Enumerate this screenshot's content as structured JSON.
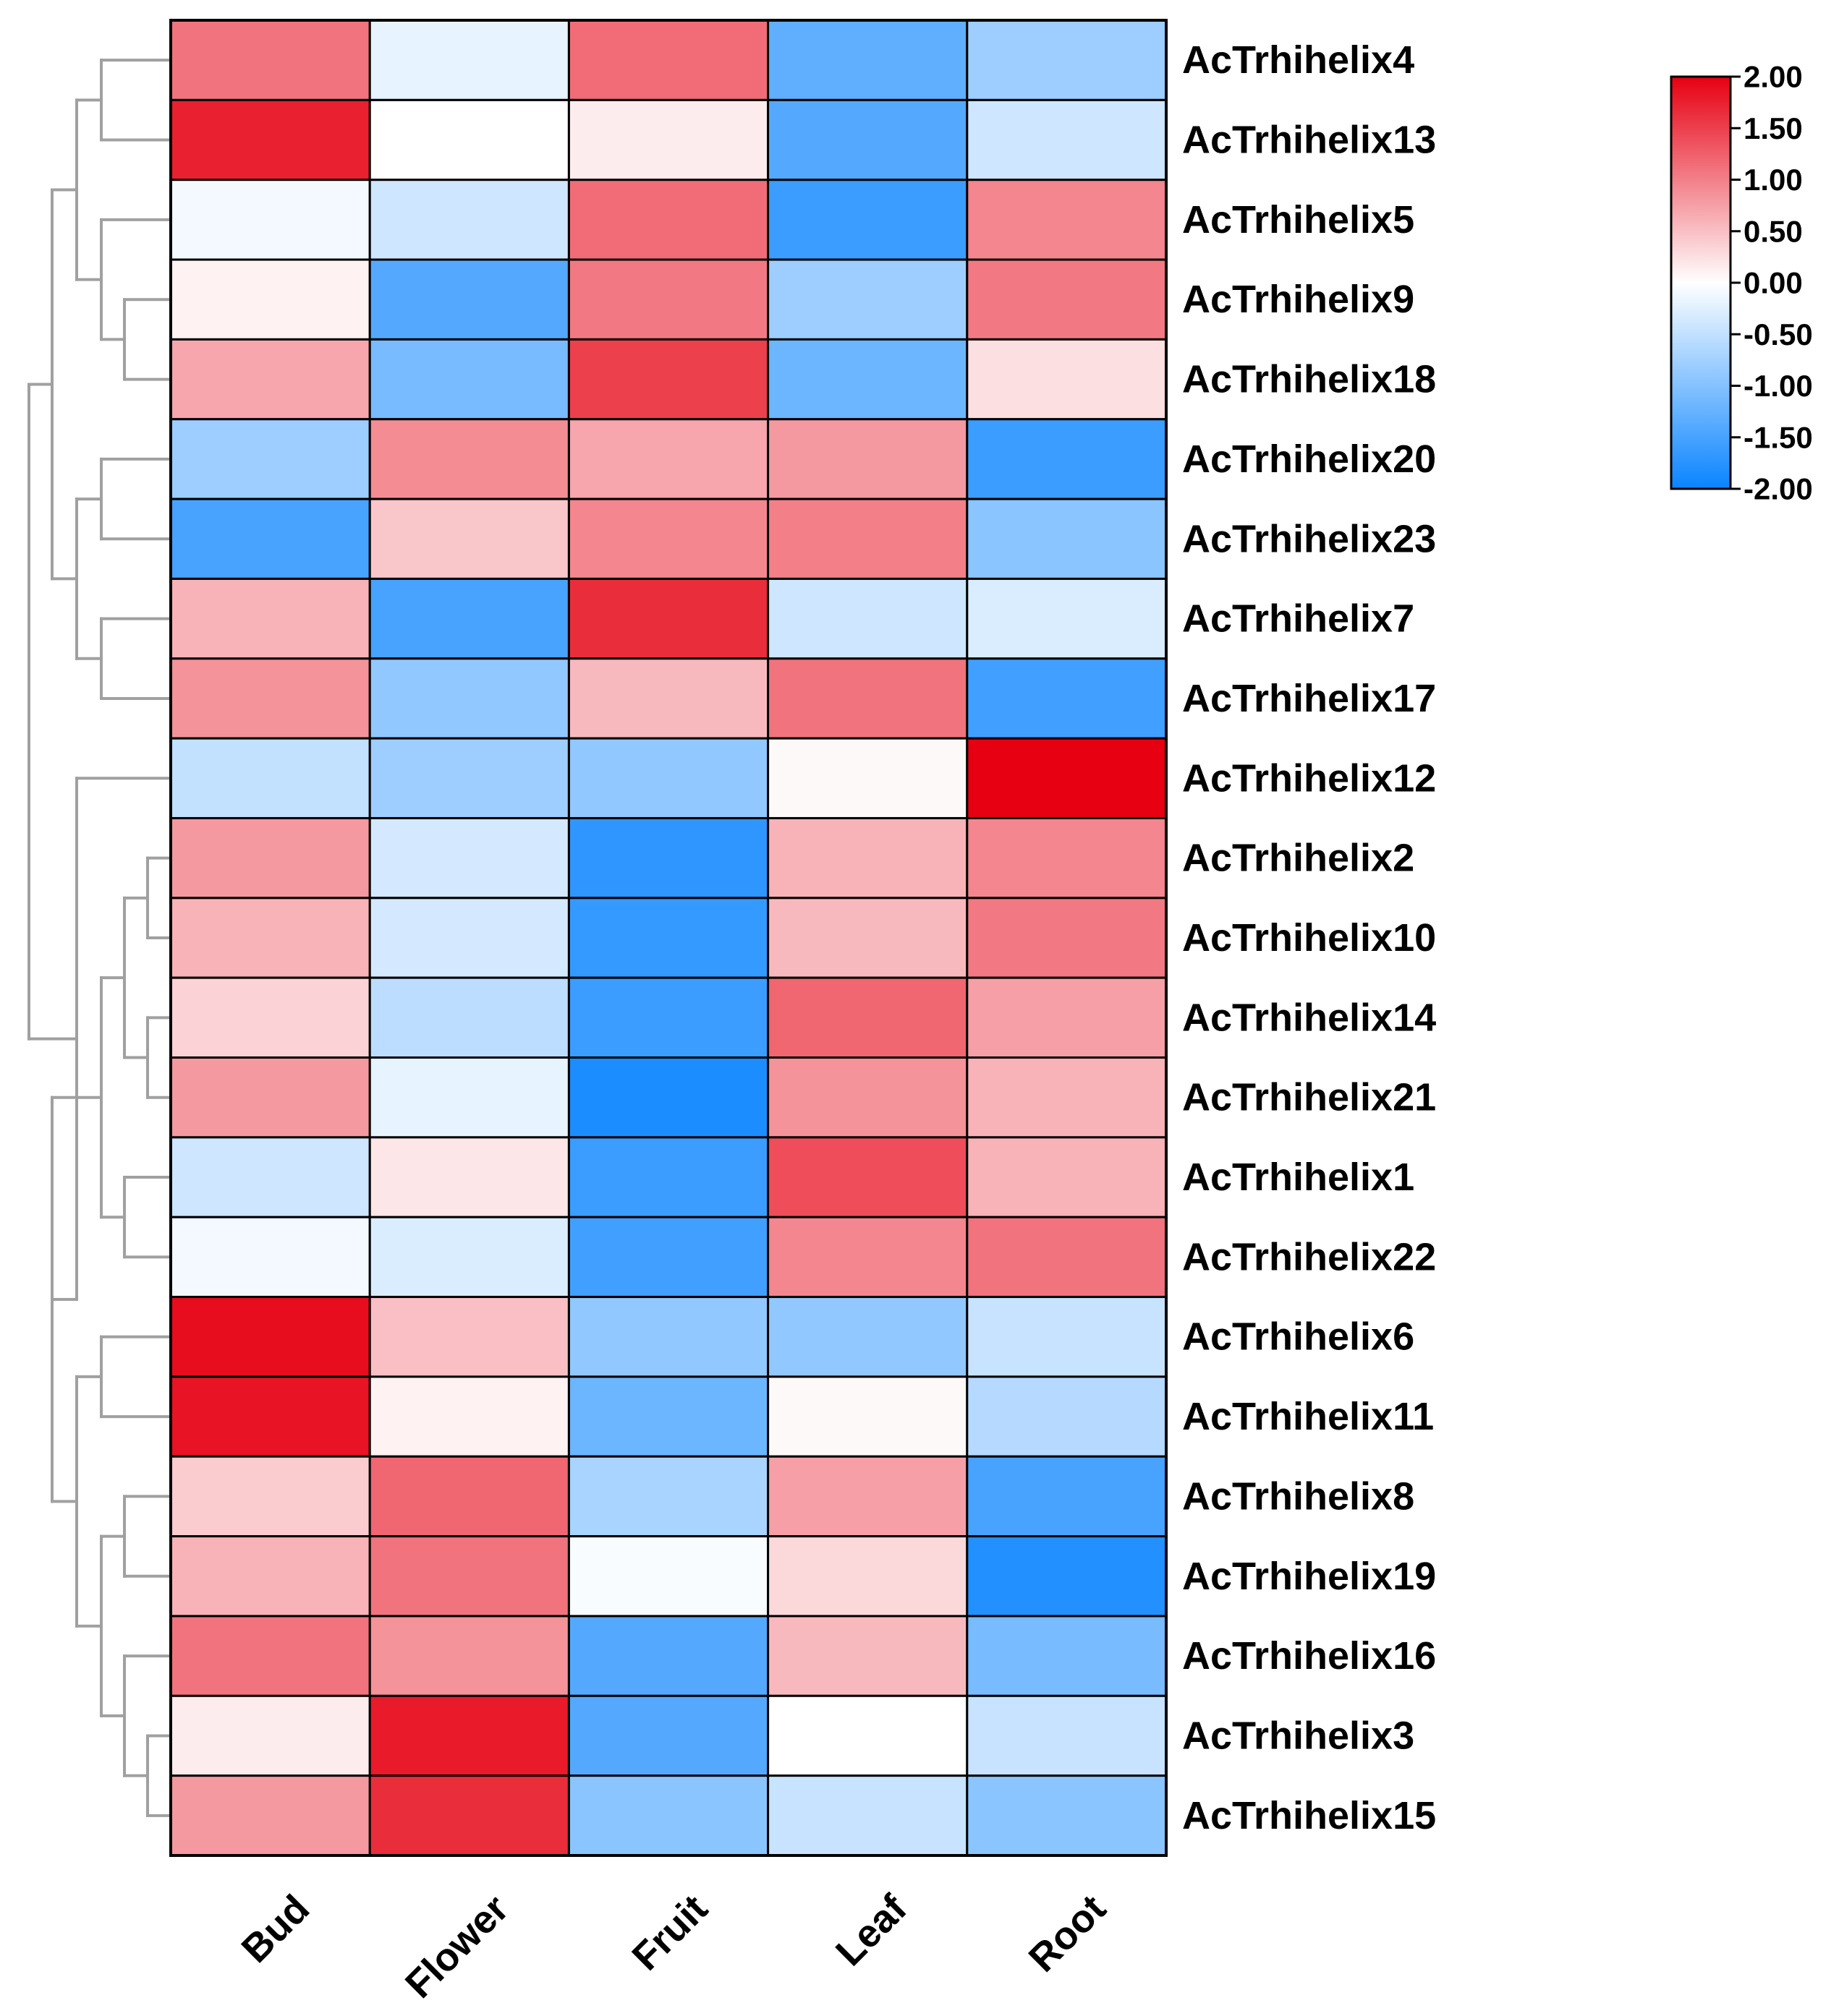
{
  "chart_data": {
    "type": "heatmap",
    "title": "",
    "xlabel": "",
    "ylabel": "",
    "columns": [
      "Bud",
      "Flower",
      "Fruit",
      "Leaf",
      "Root"
    ],
    "rows": [
      "AcTrhihelix4",
      "AcTrhihelix13",
      "AcTrhihelix5",
      "AcTrhihelix9",
      "AcTrhihelix18",
      "AcTrhihelix20",
      "AcTrhihelix23",
      "AcTrhihelix7",
      "AcTrhihelix17",
      "AcTrhihelix12",
      "AcTrhihelix2",
      "AcTrhihelix10",
      "AcTrhihelix14",
      "AcTrhihelix21",
      "AcTrhihelix1",
      "AcTrhihelix22",
      "AcTrhihelix6",
      "AcTrhihelix11",
      "AcTrhihelix8",
      "AcTrhihelix19",
      "AcTrhihelix16",
      "AcTrhihelix3",
      "AcTrhihelix15"
    ],
    "values": [
      [
        1.1,
        -0.2,
        1.15,
        -1.3,
        -0.8
      ],
      [
        1.75,
        0.0,
        0.15,
        -1.4,
        -0.4
      ],
      [
        -0.1,
        -0.4,
        1.15,
        -1.6,
        0.95
      ],
      [
        0.1,
        -1.4,
        1.05,
        -0.8,
        1.05
      ],
      [
        0.7,
        -1.1,
        1.5,
        -1.2,
        0.25
      ],
      [
        -0.8,
        0.9,
        0.7,
        0.8,
        -1.6
      ],
      [
        -1.5,
        0.45,
        0.95,
        1.0,
        -0.95
      ],
      [
        0.6,
        -1.5,
        1.65,
        -0.4,
        -0.3
      ],
      [
        0.85,
        -0.9,
        0.55,
        1.1,
        -1.55
      ],
      [
        -0.5,
        -0.8,
        -0.9,
        0.05,
        2.0
      ],
      [
        0.8,
        -0.35,
        -1.7,
        0.6,
        0.95
      ],
      [
        0.6,
        -0.35,
        -1.65,
        0.55,
        1.05
      ],
      [
        0.35,
        -0.55,
        -1.6,
        1.2,
        0.75
      ],
      [
        0.8,
        -0.2,
        -1.85,
        0.85,
        0.6
      ],
      [
        -0.4,
        0.2,
        -1.6,
        1.4,
        0.6
      ],
      [
        -0.1,
        -0.3,
        -1.55,
        0.95,
        1.1
      ],
      [
        1.9,
        0.5,
        -0.9,
        -0.9,
        -0.45
      ],
      [
        1.85,
        0.1,
        -1.2,
        0.05,
        -0.6
      ],
      [
        0.4,
        1.2,
        -0.7,
        0.75,
        -1.5
      ],
      [
        0.6,
        1.1,
        -0.05,
        0.3,
        -1.8
      ],
      [
        1.1,
        0.85,
        -1.4,
        0.55,
        -1.1
      ],
      [
        0.15,
        1.8,
        -1.4,
        0.0,
        -0.45
      ],
      [
        0.8,
        1.65,
        -0.95,
        -0.45,
        -0.95
      ]
    ],
    "color_scale": {
      "min": -2.0,
      "mid": 0.0,
      "max": 2.0,
      "low_color": "#0a84ff",
      "mid_color": "#ffffff",
      "high_color": "#e60012"
    },
    "legend": {
      "position": "top-right",
      "ticks": [
        "2.00",
        "1.50",
        "1.00",
        "0.50",
        "0.00",
        "-0.50",
        "-1.00",
        "-1.50",
        "-2.00"
      ]
    },
    "row_dendrogram": true,
    "dendrogram_color": "#a0a0a0",
    "cell_border_color": "#000000"
  }
}
